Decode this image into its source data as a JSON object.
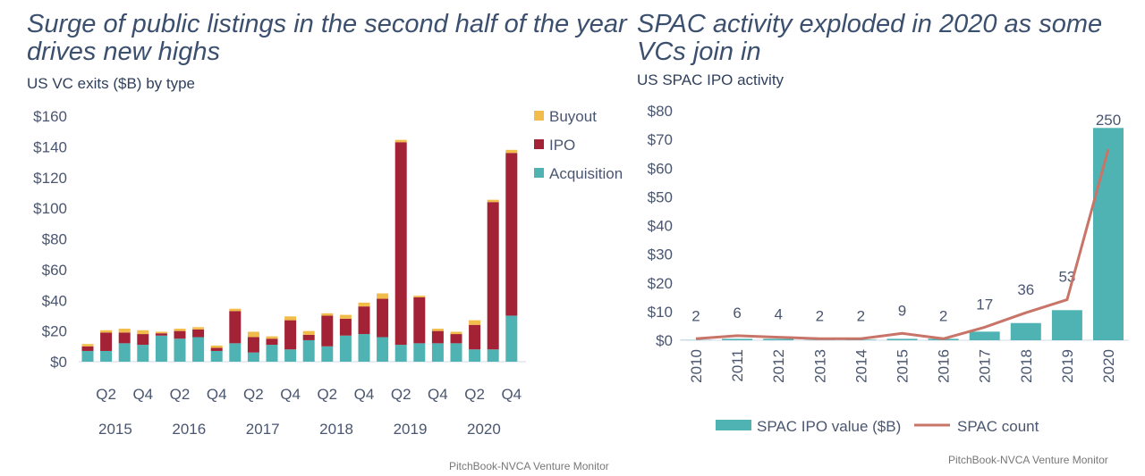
{
  "chart_data": [
    {
      "type": "bar",
      "stacked": true,
      "title": "Surge of public listings in the second half of the year drives new highs",
      "subtitle": "US VC exits ($B) by type",
      "quarter_labels": [
        "",
        "Q2",
        "",
        "Q4",
        "",
        "Q2",
        "",
        "Q4",
        "",
        "Q2",
        "",
        "Q4",
        "",
        "Q2",
        "",
        "Q4",
        "",
        "Q2",
        "",
        "Q4",
        "",
        "Q2",
        "",
        "Q4"
      ],
      "year_labels": [
        "2015",
        "2016",
        "2017",
        "2018",
        "2019",
        "2020"
      ],
      "yticks": [
        "$0",
        "$20",
        "$40",
        "$60",
        "$80",
        "$100",
        "$120",
        "$140",
        "$160"
      ],
      "ylim": [
        0,
        160
      ],
      "legend": "top-right",
      "series": [
        {
          "name": "Acquisition",
          "color": "#4fb3b3",
          "values": [
            7,
            7,
            12,
            11,
            17,
            15,
            16,
            7,
            12,
            6,
            11,
            8,
            14,
            10,
            17,
            18,
            16,
            11,
            12,
            12,
            12,
            8,
            8,
            30
          ]
        },
        {
          "name": "IPO",
          "color": "#a32235",
          "values": [
            3,
            12,
            7,
            7,
            1.5,
            5,
            5,
            2,
            21,
            10,
            4,
            19,
            3.5,
            20,
            11,
            18,
            25,
            132,
            30,
            8,
            6,
            16,
            96,
            106
          ]
        },
        {
          "name": "Buyout",
          "color": "#f2bc4a",
          "values": [
            1.5,
            1.5,
            2.5,
            2.5,
            1,
            1.5,
            1.5,
            1.5,
            1.5,
            3.5,
            1.5,
            2.5,
            2.5,
            1.5,
            2.5,
            2.5,
            3.5,
            1.5,
            1,
            1.5,
            1.5,
            3,
            1.5,
            2
          ]
        }
      ],
      "source": "PitchBook-NVCA Venture Monitor"
    },
    {
      "type": "bar",
      "title": "SPAC activity exploded in 2020 as some VCs join in",
      "subtitle": "US SPAC IPO activity",
      "categories": [
        "2010",
        "2011",
        "2012",
        "2013",
        "2014",
        "2015",
        "2016",
        "2017",
        "2018",
        "2019",
        "2020"
      ],
      "yticks": [
        "$0",
        "$10",
        "$20",
        "$30",
        "$40",
        "$50",
        "$60",
        "$70",
        "$80"
      ],
      "ylim": [
        0,
        80
      ],
      "y2lim": [
        0,
        300
      ],
      "series": [
        {
          "name": "SPAC IPO value ($B)",
          "type": "bar",
          "color": "#4fb3b3",
          "values": [
            0.1,
            0.5,
            0.5,
            0.1,
            0.2,
            0.5,
            0.5,
            3,
            6,
            10.5,
            74
          ]
        },
        {
          "name": "SPAC count",
          "type": "line",
          "color": "#c87468",
          "values": [
            2,
            6,
            4,
            2,
            2,
            9,
            2,
            17,
            36,
            53,
            250
          ],
          "labels": [
            "2",
            "6",
            "4",
            "2",
            "2",
            "9",
            "2",
            "17",
            "36",
            "53",
            "250"
          ]
        }
      ],
      "legend": "bottom",
      "source": "PitchBook-NVCA Venture Monitor"
    }
  ]
}
